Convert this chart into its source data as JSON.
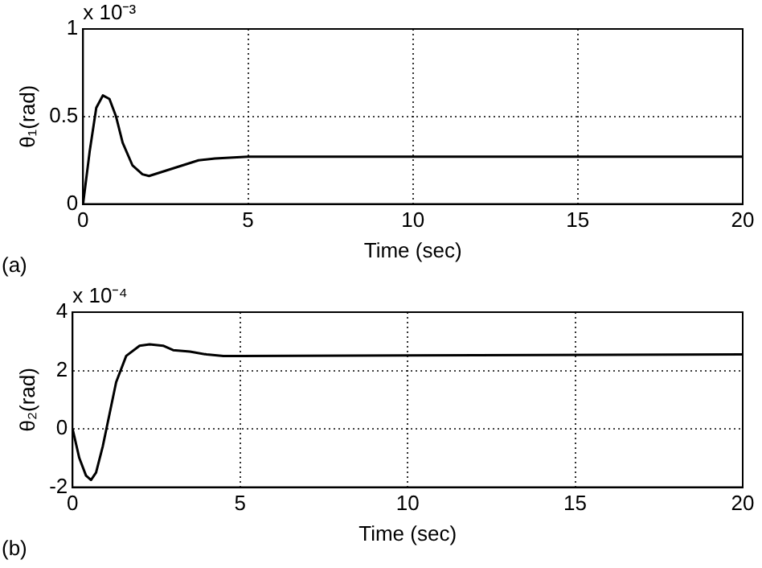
{
  "chart_data": [
    {
      "type": "line",
      "xlabel": "Time (sec)",
      "ylabel": "θ₁(rad)",
      "annotations": [
        "x 10⁻³",
        "(a)"
      ],
      "x": [
        0,
        0.2,
        0.4,
        0.6,
        0.8,
        1.0,
        1.2,
        1.5,
        1.8,
        2.0,
        2.5,
        3,
        3.5,
        4,
        5,
        10,
        15,
        20
      ],
      "series": [
        {
          "color": "#000000",
          "values": [
            0,
            0.3,
            0.55,
            0.62,
            0.6,
            0.5,
            0.35,
            0.22,
            0.17,
            0.16,
            0.19,
            0.22,
            0.25,
            0.26,
            0.27,
            0.27,
            0.27,
            0.27
          ]
        }
      ],
      "xlim": [
        0,
        20
      ],
      "xticks": [
        0,
        5,
        10,
        15,
        20
      ],
      "ylim": [
        0,
        1
      ],
      "yticks": [
        0,
        0.5,
        1
      ],
      "grid": true,
      "marker": "none",
      "line_style": "solid"
    },
    {
      "type": "line",
      "xlabel": "Time (sec)",
      "ylabel": "θ₂(rad)",
      "annotations": [
        "x 10⁻⁴",
        "(b)"
      ],
      "x": [
        0,
        0.2,
        0.4,
        0.55,
        0.7,
        0.9,
        1.1,
        1.3,
        1.6,
        2.0,
        2.3,
        2.7,
        3,
        3.5,
        4,
        4.5,
        5,
        20
      ],
      "series": [
        {
          "color": "#000000",
          "values": [
            0,
            -1.0,
            -1.6,
            -1.75,
            -1.5,
            -0.6,
            0.5,
            1.6,
            2.5,
            2.85,
            2.9,
            2.85,
            2.7,
            2.65,
            2.55,
            2.5,
            2.5,
            2.55
          ]
        }
      ],
      "xlim": [
        0,
        20
      ],
      "xticks": [
        0,
        5,
        10,
        15,
        20
      ],
      "ylim": [
        -2,
        4
      ],
      "yticks": [
        -2,
        0,
        2,
        4
      ],
      "grid": true,
      "marker": "none",
      "line_style": "solid"
    }
  ]
}
